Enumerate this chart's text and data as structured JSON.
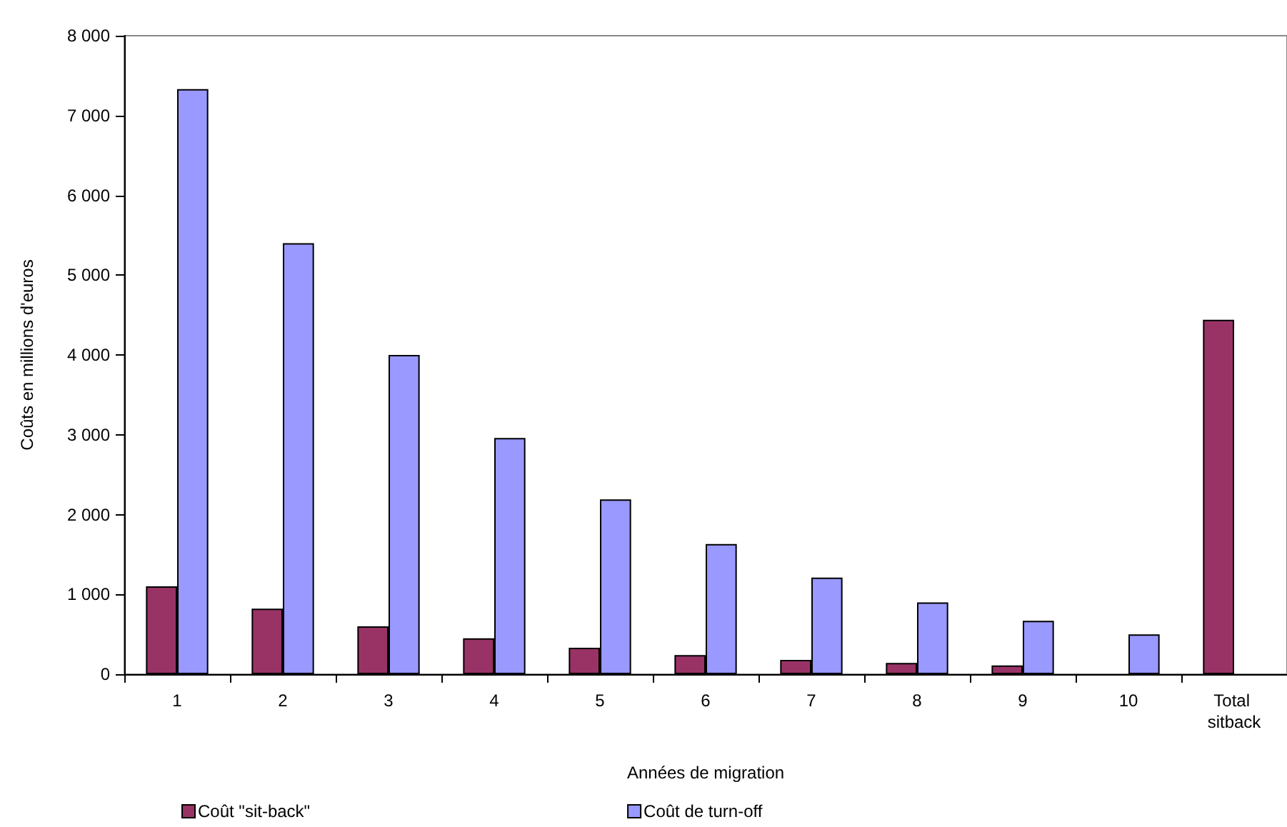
{
  "chart_data": {
    "type": "bar",
    "xlabel": "Années de migration",
    "ylabel": "Coûts en millions d'euros",
    "categories": [
      "1",
      "2",
      "3",
      "4",
      "5",
      "6",
      "7",
      "8",
      "9",
      "10",
      "Total sitback"
    ],
    "series": [
      {
        "name": "Coût \"sit-back\"",
        "color": "#993366",
        "values": [
          1100,
          820,
          600,
          450,
          330,
          240,
          180,
          140,
          110,
          null,
          4440
        ]
      },
      {
        "name": "Coût de turn-off",
        "color": "#9999ff",
        "values": [
          7330,
          5400,
          4000,
          2960,
          2190,
          1630,
          1210,
          900,
          670,
          500,
          null
        ]
      }
    ],
    "ylim": [
      0,
      8000
    ],
    "yticks": [
      0,
      {
        "value": 1000,
        "label": "1 000"
      },
      {
        "value": 2000,
        "label": "2 000"
      },
      {
        "value": 3000,
        "label": "3 000"
      },
      {
        "value": 4000,
        "label": "4 000"
      },
      {
        "value": 5000,
        "label": "5 000"
      },
      {
        "value": 6000,
        "label": "6 000"
      },
      {
        "value": 7000,
        "label": "7 000"
      },
      {
        "value": 8000,
        "label": "8 000"
      }
    ],
    "grid": false,
    "legend": "bottom"
  }
}
